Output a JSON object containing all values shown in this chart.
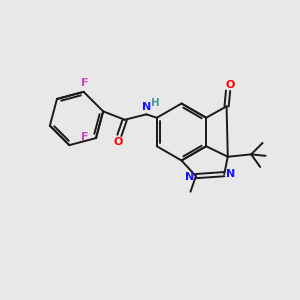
{
  "background_color": "#e8e8e8",
  "bond_color": "#1a1a1a",
  "N_color": "#1414ff",
  "O_color": "#ff0000",
  "F_color": "#cc44cc",
  "H_color": "#4a9a9a",
  "figsize": [
    3.0,
    3.0
  ],
  "dpi": 100,
  "xlim": [
    0,
    10
  ],
  "ylim": [
    0,
    10
  ]
}
